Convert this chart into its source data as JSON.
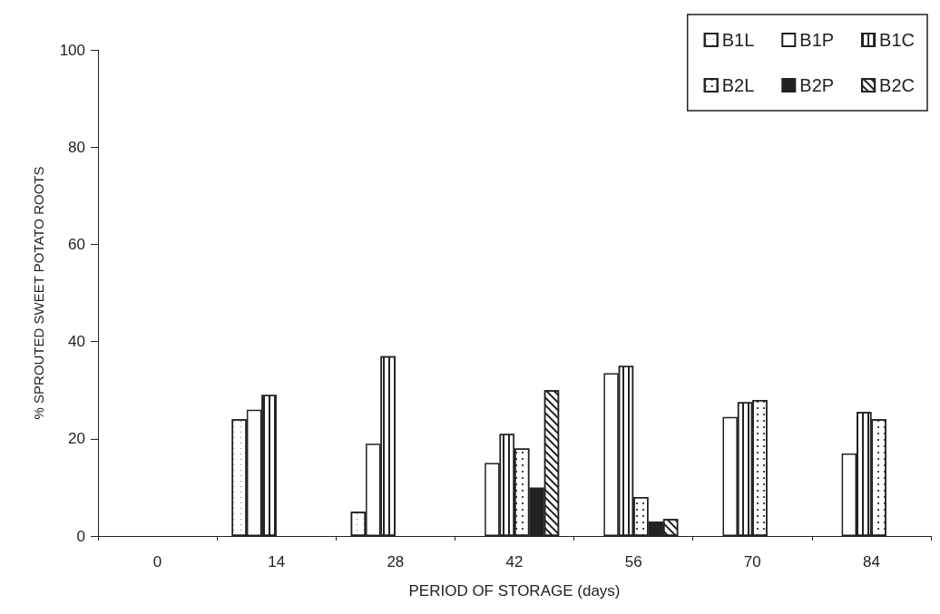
{
  "chart_data": {
    "type": "bar",
    "xlabel": "PERIOD OF STORAGE (days)",
    "ylabel": "% SPROUTED SWEET POTATO ROOTS",
    "categories": [
      "0",
      "14",
      "28",
      "42",
      "56",
      "70",
      "84"
    ],
    "series": [
      {
        "name": "B1L",
        "color": "#ffffff",
        "values": [
          null,
          24,
          5,
          null,
          null,
          null,
          null
        ]
      },
      {
        "name": "B1P",
        "color": "#ffffff",
        "values": [
          null,
          26,
          19,
          15,
          33.5,
          24.5,
          17
        ]
      },
      {
        "name": "B1C",
        "color": "#ffffff",
        "values": [
          null,
          29,
          37,
          21,
          35,
          27.5,
          25.5
        ]
      },
      {
        "name": "B2L",
        "color": "#ffffff",
        "values": [
          null,
          null,
          null,
          18,
          8,
          28,
          24
        ]
      },
      {
        "name": "B2P",
        "color": "#222222",
        "values": [
          null,
          null,
          null,
          10,
          3,
          null,
          null
        ]
      },
      {
        "name": "B2C",
        "color": "#ffffff",
        "values": [
          null,
          null,
          null,
          30,
          3.5,
          null,
          null
        ]
      }
    ],
    "ylim": [
      0,
      100
    ],
    "yticks": [
      0,
      20,
      40,
      60,
      80,
      100
    ],
    "grid": false,
    "legend": "top right"
  }
}
